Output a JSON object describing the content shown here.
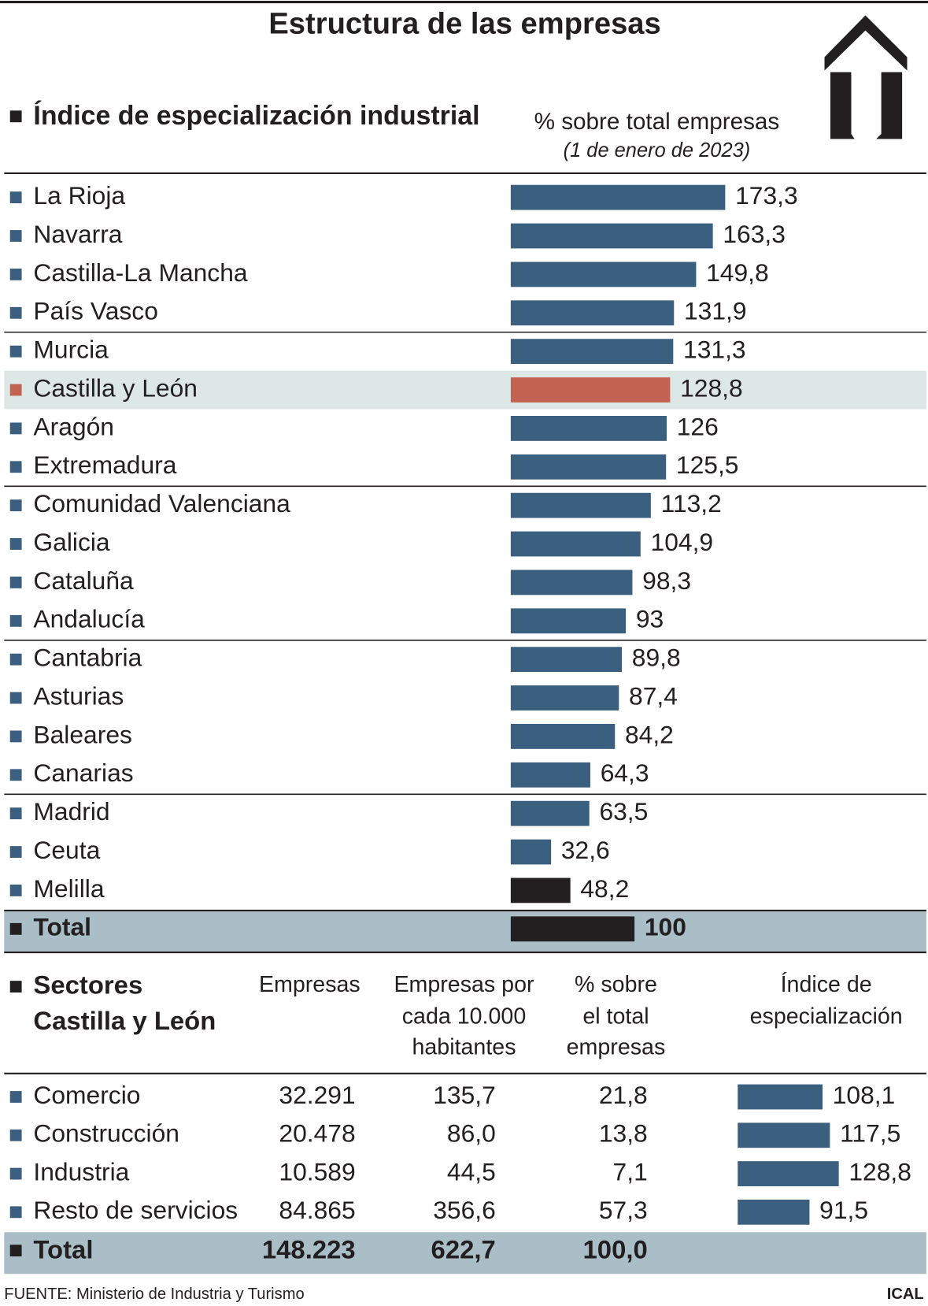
{
  "title": "Estructura de las empresas",
  "chart_data": {
    "type": "bar",
    "orientation": "horizontal",
    "title": "Índice de especialización industrial",
    "subtitle": "% sobre total empresas",
    "note": "(1 de enero de 2023)",
    "categories": [
      "La Rioja",
      "Navarra",
      "Castilla-La Mancha",
      "País Vasco",
      "Murcia",
      "Castilla y León",
      "Aragón",
      "Extremadura",
      "Comunidad Valenciana",
      "Galicia",
      "Cataluña",
      "Andalucía",
      "Cantabria",
      "Asturias",
      "Baleares",
      "Canarias",
      "Madrid",
      "Ceuta",
      "Melilla",
      "Total"
    ],
    "values": [
      173.3,
      163.3,
      149.8,
      131.9,
      131.3,
      128.8,
      126,
      125.5,
      113.2,
      104.9,
      98.3,
      93,
      89.8,
      87.4,
      84.2,
      64.3,
      63.5,
      32.6,
      48.2,
      100
    ],
    "value_labels": [
      "173,3",
      "163,3",
      "149,8",
      "131,9",
      "131,3",
      "128,8",
      "126",
      "125,5",
      "113,2",
      "104,9",
      "98,3",
      "93",
      "89,8",
      "87,4",
      "84,2",
      "64,3",
      "63,5",
      "32,6",
      "48,2",
      "100"
    ],
    "colors": [
      "#3a5f7f",
      "#3a5f7f",
      "#3a5f7f",
      "#3a5f7f",
      "#3a5f7f",
      "#c26352",
      "#3a5f7f",
      "#3a5f7f",
      "#3a5f7f",
      "#3a5f7f",
      "#3a5f7f",
      "#3a5f7f",
      "#3a5f7f",
      "#3a5f7f",
      "#3a5f7f",
      "#3a5f7f",
      "#3a5f7f",
      "#3a5f7f",
      "#231f20",
      "#231f20"
    ],
    "highlight": "Castilla y León"
  },
  "table": {
    "header": [
      [
        "Sectores",
        "Castilla y León"
      ],
      [
        "Empresas"
      ],
      [
        "Empresas por",
        "cada 10.000",
        "habitantes"
      ],
      [
        "% sobre",
        "el total",
        "empresas"
      ],
      [
        "Índice de",
        "especialización"
      ]
    ],
    "rows": [
      [
        "Comercio",
        "32.291",
        "135,7",
        "21,8"
      ],
      [
        "Construcción",
        "20.478",
        "86,0",
        "13,8"
      ],
      [
        "Industria",
        "10.589",
        "44,5",
        "7,1"
      ],
      [
        "Resto de servicios",
        "84.865",
        "356,6",
        "57,3"
      ]
    ],
    "index": {
      "values": [
        108.1,
        117.5,
        128.8,
        91.5
      ],
      "value_labels": [
        "108,1",
        "117,5",
        "128,8",
        "91,5"
      ],
      "color": "#3a5f7f"
    },
    "total": [
      "Total",
      "148.223",
      "622,7",
      "100,0"
    ]
  },
  "source": "FUENTE: Ministerio de Industria y Turismo",
  "brand": "ICAL"
}
